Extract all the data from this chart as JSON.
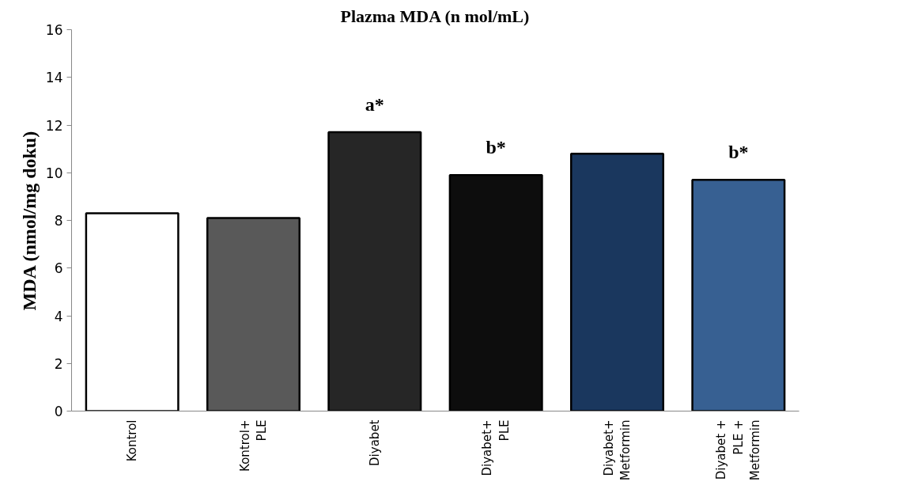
{
  "chart_data": {
    "type": "bar",
    "title": "Plazma MDA (n mol/mL)",
    "ylabel": "MDA (nmol/mg doku)",
    "categories": [
      "Kontrol",
      "Kontrol+ PLE",
      "Diyabet",
      "Diyabet+ PLE",
      "Diyabet+ Metformin",
      "Diyabet + PLE + Metformin"
    ],
    "values": [
      8.3,
      8.1,
      11.7,
      9.9,
      10.8,
      9.7
    ],
    "colors": [
      "#ffffff",
      "#595959",
      "#262626",
      "#0d0d0d",
      "#1a375e",
      "#376092"
    ],
    "ylim": [
      0,
      16
    ],
    "yticks": [
      0,
      2,
      4,
      6,
      8,
      10,
      12,
      14,
      16
    ],
    "grid": false,
    "annotations": [
      {
        "text": "a*",
        "x": "Diyabet",
        "y": 11.7
      },
      {
        "text": "b*",
        "x": "Diyabet+ PLE",
        "y": 9.9
      },
      {
        "text": "b*",
        "x": "Diyabet + PLE + Metformin",
        "y": 9.7
      }
    ]
  }
}
